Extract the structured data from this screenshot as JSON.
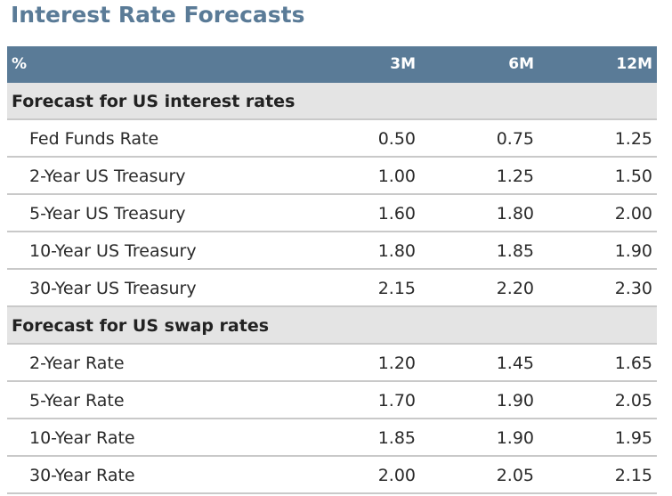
{
  "title": "Interest Rate Forecasts",
  "chart_data": {
    "type": "table",
    "title": "Interest Rate Forecasts",
    "columns": [
      "%",
      "3M",
      "6M",
      "12M"
    ],
    "sections": [
      {
        "name": "Forecast for US interest rates",
        "rows": [
          {
            "label": "Fed Funds Rate",
            "values": [
              "0.50",
              "0.75",
              "1.25"
            ]
          },
          {
            "label": "2-Year US Treasury",
            "values": [
              "1.00",
              "1.25",
              "1.50"
            ]
          },
          {
            "label": "5-Year US Treasury",
            "values": [
              "1.60",
              "1.80",
              "2.00"
            ]
          },
          {
            "label": "10-Year US Treasury",
            "values": [
              "1.80",
              "1.85",
              "1.90"
            ]
          },
          {
            "label": "30-Year US Treasury",
            "values": [
              "2.15",
              "2.20",
              "2.30"
            ]
          }
        ]
      },
      {
        "name": "Forecast for US swap rates",
        "rows": [
          {
            "label": "2-Year Rate",
            "values": [
              "1.20",
              "1.45",
              "1.65"
            ]
          },
          {
            "label": "5-Year Rate",
            "values": [
              "1.70",
              "1.90",
              "2.05"
            ]
          },
          {
            "label": "10-Year Rate",
            "values": [
              "1.85",
              "1.90",
              "1.95"
            ]
          },
          {
            "label": "30-Year Rate",
            "values": [
              "2.00",
              "2.05",
              "2.15"
            ]
          }
        ]
      }
    ]
  },
  "colors": {
    "header_bg": "#5a7b97",
    "title": "#5a7b97",
    "section_bg": "#e4e4e4",
    "divider": "#c9c9c9"
  }
}
